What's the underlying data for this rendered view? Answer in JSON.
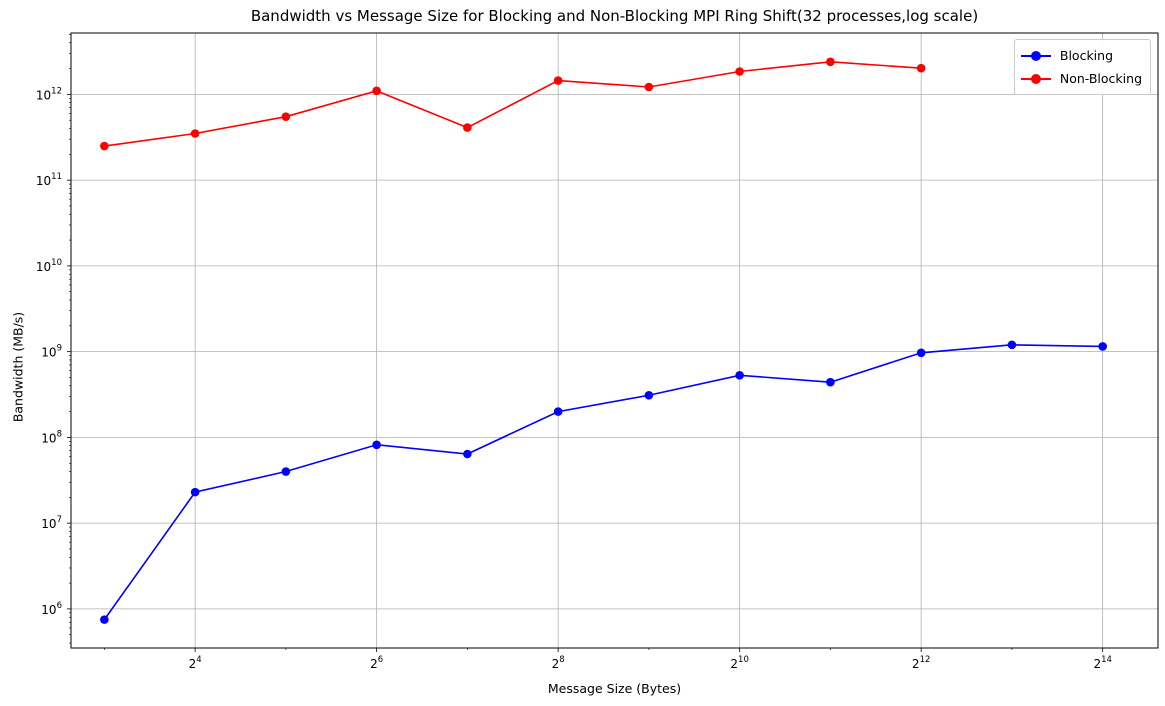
{
  "chart_data": {
    "type": "line",
    "title": "Bandwidth vs Message Size for Blocking and Non-Blocking MPI Ring Shift(32 processes,log scale)",
    "xlabel": "Message Size (Bytes)",
    "ylabel": "Bandwidth (MB/s)",
    "xscale": "log2",
    "yscale": "log10",
    "xlim": [
      6.2,
      25000
    ],
    "ylim": [
      350000,
      5200000000000
    ],
    "x_ticks": [
      {
        "value": 16,
        "base": "2",
        "exp": "4"
      },
      {
        "value": 64,
        "base": "2",
        "exp": "6"
      },
      {
        "value": 256,
        "base": "2",
        "exp": "8"
      },
      {
        "value": 1024,
        "base": "2",
        "exp": "10"
      },
      {
        "value": 4096,
        "base": "2",
        "exp": "12"
      },
      {
        "value": 16384,
        "base": "2",
        "exp": "14"
      }
    ],
    "y_ticks": [
      {
        "value": 1000000,
        "base": "10",
        "exp": "6"
      },
      {
        "value": 10000000,
        "base": "10",
        "exp": "7"
      },
      {
        "value": 100000000,
        "base": "10",
        "exp": "8"
      },
      {
        "value": 1000000000,
        "base": "10",
        "exp": "9"
      },
      {
        "value": 10000000000,
        "base": "10",
        "exp": "10"
      },
      {
        "value": 100000000000,
        "base": "10",
        "exp": "11"
      },
      {
        "value": 1000000000000,
        "base": "10",
        "exp": "12"
      }
    ],
    "grid": true,
    "legend_position": "top-right",
    "series": [
      {
        "name": "Blocking",
        "color": "#0000ff",
        "marker": "circle",
        "x": [
          8,
          16,
          32,
          64,
          128,
          256,
          512,
          1024,
          2048,
          4096,
          8192,
          16384
        ],
        "y": [
          750000,
          23000000,
          40000000,
          82000000,
          64000000,
          200000000,
          310000000,
          530000000,
          440000000,
          970000000,
          1200000000,
          1150000000
        ]
      },
      {
        "name": "Non-Blocking",
        "color": "#ff0000",
        "marker": "circle",
        "x": [
          8,
          16,
          32,
          64,
          128,
          256,
          512,
          1024,
          2048,
          4096
        ],
        "y": [
          250000000000,
          350000000000,
          550000000000,
          1100000000000,
          410000000000,
          1450000000000,
          1220000000000,
          1850000000000,
          2400000000000,
          2020000000000
        ]
      }
    ]
  }
}
